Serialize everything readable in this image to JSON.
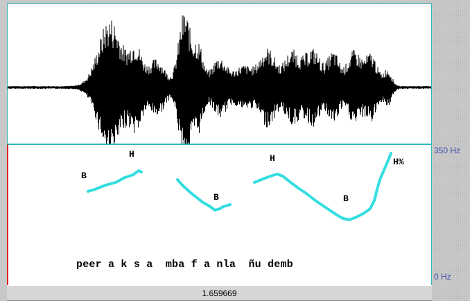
{
  "pitch_panel": {
    "axis_max_label": "350 Hz",
    "axis_min_label": "0 Hz",
    "contour_color": "#33dde0",
    "tone_labels": [
      "B",
      "H",
      "B",
      "H",
      "B",
      "H%"
    ],
    "transcription": "peer a k s a  mba f a nla  ñu demb"
  },
  "waveform": {
    "color": "#000000",
    "border_color": "#2fb5b5"
  },
  "status_bar": {
    "cursor_time": "1.659669"
  }
}
